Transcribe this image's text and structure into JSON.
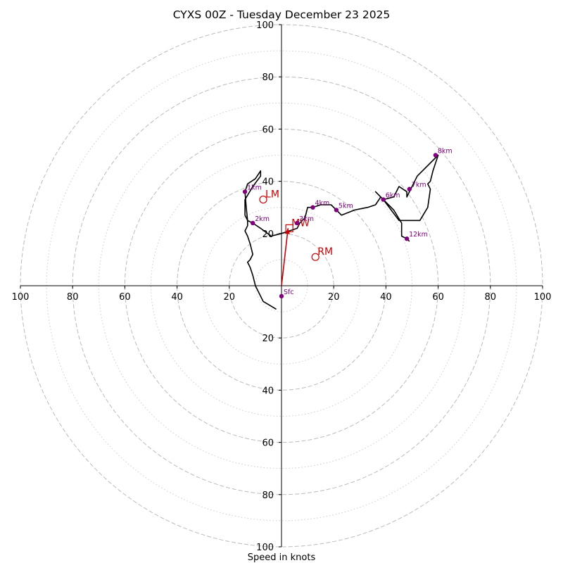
{
  "chart_data": {
    "type": "line",
    "title": "CYXS 00Z - Tuesday December 23 2025",
    "xlabel": "Speed in knots",
    "ylabel": "",
    "xlim": [
      -100,
      100
    ],
    "ylim": [
      -100,
      100
    ],
    "x_ticks": [
      -100,
      -80,
      -60,
      -40,
      -20,
      20,
      40,
      60,
      80,
      100
    ],
    "x_tick_labels": [
      "100",
      "80",
      "60",
      "40",
      "20",
      "20",
      "40",
      "60",
      "80",
      "100"
    ],
    "y_ticks": [
      100,
      80,
      60,
      40,
      20,
      -20,
      -40,
      -60,
      -80,
      -100
    ],
    "y_tick_labels": [
      "100",
      "80",
      "60",
      "40",
      "20",
      "20",
      "40",
      "60",
      "80",
      "100"
    ],
    "rings_major": [
      20,
      40,
      60,
      80,
      100
    ],
    "rings_minor": [
      10,
      30,
      50,
      70,
      90
    ],
    "grid": true,
    "colors": {
      "hodograph": "#000000",
      "height_markers": "#800080",
      "motion": "#cc0000",
      "grid": "#bbbbbb"
    },
    "hodograph": [
      [
        -2,
        -9
      ],
      [
        -7,
        -6
      ],
      [
        -10,
        0
      ],
      [
        -11,
        4
      ],
      [
        -12,
        7
      ],
      [
        -13,
        9
      ],
      [
        -12,
        10
      ],
      [
        -11,
        12
      ],
      [
        -12,
        16
      ],
      [
        -13,
        19
      ],
      [
        -14,
        21
      ],
      [
        -13,
        23
      ],
      [
        -13,
        25
      ],
      [
        -14,
        27
      ],
      [
        -14,
        30
      ],
      [
        -14,
        33
      ],
      [
        -11,
        38
      ],
      [
        -8,
        42
      ],
      [
        -8,
        44
      ],
      [
        -10,
        41
      ],
      [
        -13,
        39
      ],
      [
        -14,
        36
      ],
      [
        -13.5,
        30
      ],
      [
        -13,
        25
      ],
      [
        -11,
        24
      ],
      [
        -8,
        22
      ],
      [
        -4,
        19
      ],
      [
        0,
        20
      ],
      [
        3,
        21
      ],
      [
        6,
        22
      ],
      [
        7,
        24
      ],
      [
        9,
        26
      ],
      [
        10,
        30
      ],
      [
        12,
        30
      ],
      [
        15,
        31
      ],
      [
        19,
        31
      ],
      [
        21,
        29
      ],
      [
        23,
        27
      ],
      [
        28,
        29
      ],
      [
        33,
        30
      ],
      [
        36,
        31
      ],
      [
        38,
        34
      ],
      [
        36,
        36
      ],
      [
        39,
        33
      ],
      [
        43,
        34
      ],
      [
        45,
        38
      ],
      [
        48,
        36
      ],
      [
        48,
        34
      ],
      [
        52,
        42
      ],
      [
        60,
        50
      ],
      [
        58,
        44
      ],
      [
        57,
        40
      ],
      [
        56,
        39
      ],
      [
        57,
        37
      ],
      [
        56,
        30
      ],
      [
        53,
        25
      ],
      [
        50,
        25
      ],
      [
        45,
        25
      ],
      [
        42,
        29
      ],
      [
        39,
        33
      ],
      [
        43,
        29
      ],
      [
        46,
        24
      ],
      [
        46,
        20
      ],
      [
        46,
        19
      ],
      [
        48,
        18
      ],
      [
        49,
        17
      ]
    ],
    "height_markers": [
      {
        "label": "Sfc",
        "x": 0,
        "y": -4
      },
      {
        "label": "1km",
        "x": -14,
        "y": 36
      },
      {
        "label": "2km",
        "x": -11,
        "y": 24
      },
      {
        "label": "3km",
        "x": 6,
        "y": 24
      },
      {
        "label": "4km",
        "x": 12,
        "y": 30
      },
      {
        "label": "5km",
        "x": 21,
        "y": 29
      },
      {
        "label": "6km",
        "x": 39,
        "y": 33
      },
      {
        "label": "7km",
        "x": 49,
        "y": 37
      },
      {
        "label": "8km",
        "x": 59,
        "y": 50
      },
      {
        "label": "12km",
        "x": 48,
        "y": 18
      }
    ],
    "storm_motion": {
      "vector_from": [
        0,
        0
      ],
      "vector_to": [
        2.5,
        22
      ],
      "markers": [
        {
          "label": "MW",
          "x": 3,
          "y": 22,
          "shape": "square"
        },
        {
          "label": "LM",
          "x": -7,
          "y": 33,
          "shape": "circle"
        },
        {
          "label": "RM",
          "x": 13,
          "y": 11,
          "shape": "circle"
        }
      ]
    }
  }
}
